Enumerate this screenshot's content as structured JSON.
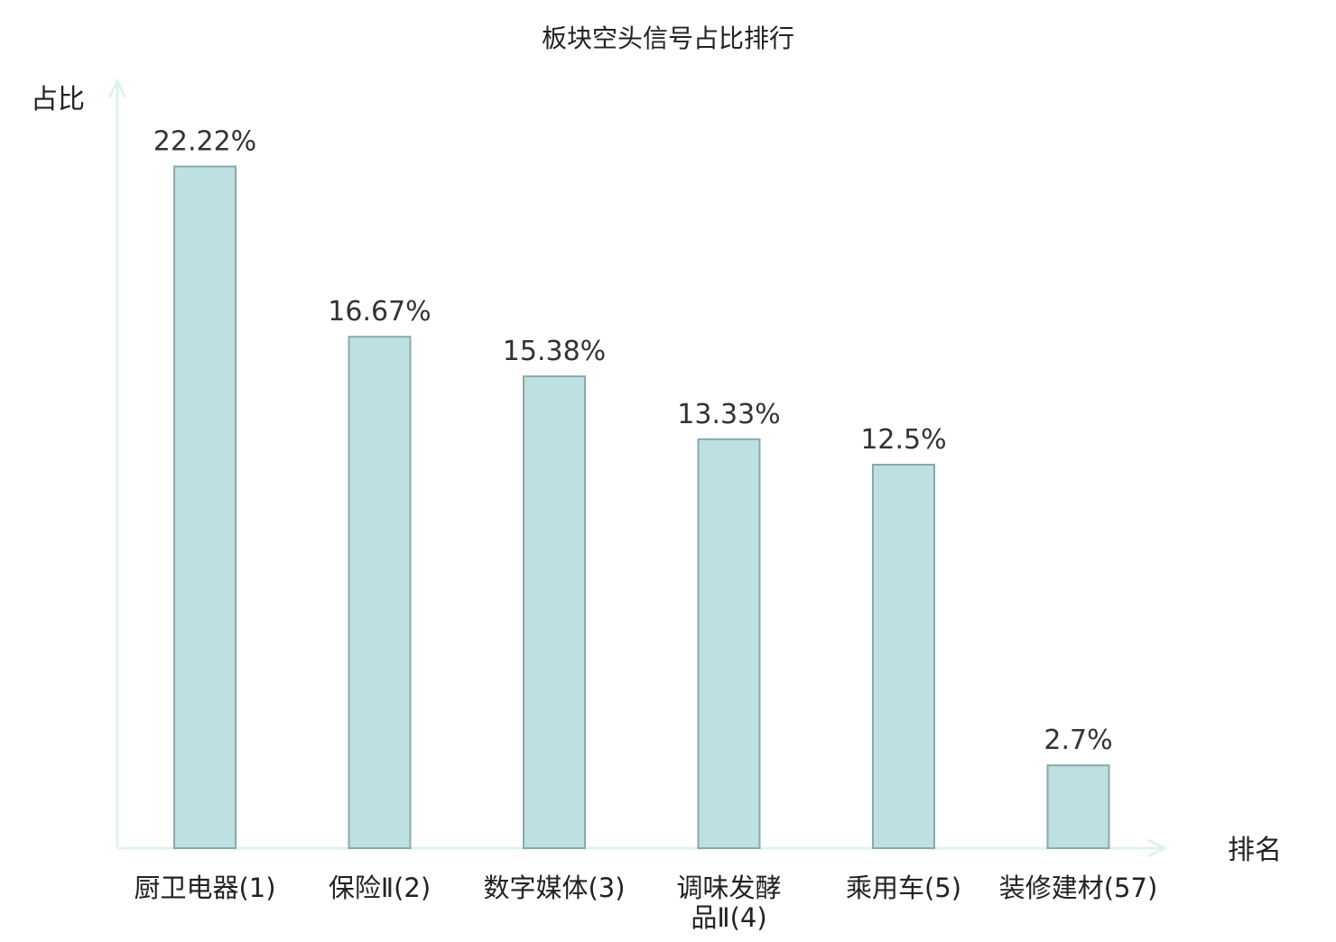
{
  "chart_data": {
    "type": "bar",
    "title": "板块空头信号占比排行",
    "ylabel": "占比",
    "xlabel": "排名",
    "ylim": [
      0,
      25
    ],
    "grid": false,
    "categories": [
      [
        "厨卫电器(1)"
      ],
      [
        "保险Ⅱ(2)"
      ],
      [
        "数字媒体(3)"
      ],
      [
        "调味发酵",
        "品Ⅱ(4)"
      ],
      [
        "乘用车(5)"
      ],
      [
        "装修建材(57)"
      ]
    ],
    "values": [
      22.22,
      16.67,
      15.38,
      13.33,
      12.5,
      2.7
    ],
    "value_labels": [
      "22.22%",
      "16.67%",
      "15.38%",
      "13.33%",
      "12.5%",
      "2.7%"
    ],
    "highlight_index": 5
  },
  "colors": {
    "bar_fill": "#bde0e3",
    "bar_stroke": "#8aa9ab",
    "axis": "#dff0ef",
    "text": "#222222",
    "value_text": "#333333",
    "highlight": "#e0262a"
  }
}
